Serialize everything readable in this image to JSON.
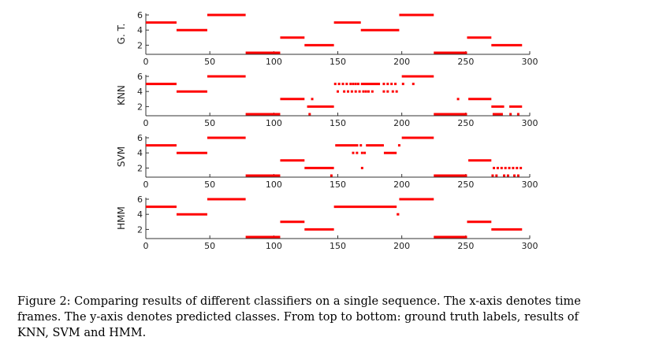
{
  "chart_data": [
    {
      "type": "scatter",
      "ylabel": "G. T.",
      "xlim": [
        0,
        300
      ],
      "ylim": [
        1,
        6
      ],
      "xticks": [
        0,
        50,
        100,
        150,
        200,
        250,
        300
      ],
      "yticks": [
        2,
        4,
        6
      ],
      "color": "#ff0000",
      "segments": [
        {
          "x0": 0,
          "x1": 24,
          "y": 5
        },
        {
          "x0": 24,
          "x1": 48,
          "y": 4
        },
        {
          "x0": 48,
          "x1": 78,
          "y": 6
        },
        {
          "x0": 78,
          "x1": 105,
          "y": 1
        },
        {
          "x0": 105,
          "x1": 124,
          "y": 3
        },
        {
          "x0": 124,
          "x1": 147,
          "y": 2
        },
        {
          "x0": 147,
          "x1": 168,
          "y": 5
        },
        {
          "x0": 168,
          "x1": 198,
          "y": 4
        },
        {
          "x0": 198,
          "x1": 225,
          "y": 6
        },
        {
          "x0": 225,
          "x1": 251,
          "y": 1
        },
        {
          "x0": 251,
          "x1": 270,
          "y": 3
        },
        {
          "x0": 270,
          "x1": 294,
          "y": 2
        }
      ],
      "points": []
    },
    {
      "type": "scatter",
      "ylabel": "KNN",
      "xlim": [
        0,
        300
      ],
      "ylim": [
        1,
        6
      ],
      "xticks": [
        0,
        50,
        100,
        150,
        200,
        250,
        300
      ],
      "yticks": [
        2,
        4,
        6
      ],
      "color": "#ff0000",
      "segments": [
        {
          "x0": 0,
          "x1": 24,
          "y": 5
        },
        {
          "x0": 24,
          "x1": 48,
          "y": 4
        },
        {
          "x0": 48,
          "x1": 78,
          "y": 6
        },
        {
          "x0": 78,
          "x1": 105,
          "y": 1
        },
        {
          "x0": 105,
          "x1": 124,
          "y": 3
        },
        {
          "x0": 126,
          "x1": 147,
          "y": 2
        },
        {
          "x0": 168,
          "x1": 183,
          "y": 5
        },
        {
          "x0": 200,
          "x1": 225,
          "y": 6
        },
        {
          "x0": 225,
          "x1": 251,
          "y": 1
        },
        {
          "x0": 252,
          "x1": 270,
          "y": 3
        },
        {
          "x0": 270,
          "x1": 280,
          "y": 2
        },
        {
          "x0": 284,
          "x1": 294,
          "y": 2
        },
        {
          "x0": 271,
          "x1": 279,
          "y": 1
        }
      ],
      "points": [
        {
          "x": 148,
          "y": 5
        },
        {
          "x": 151,
          "y": 5
        },
        {
          "x": 154,
          "y": 5
        },
        {
          "x": 157,
          "y": 5
        },
        {
          "x": 160,
          "y": 5
        },
        {
          "x": 162,
          "y": 5
        },
        {
          "x": 164,
          "y": 5
        },
        {
          "x": 166,
          "y": 5
        },
        {
          "x": 186,
          "y": 5
        },
        {
          "x": 189,
          "y": 5
        },
        {
          "x": 192,
          "y": 5
        },
        {
          "x": 195,
          "y": 5
        },
        {
          "x": 201,
          "y": 5
        },
        {
          "x": 209,
          "y": 5
        },
        {
          "x": 150,
          "y": 4
        },
        {
          "x": 155,
          "y": 4
        },
        {
          "x": 158,
          "y": 4
        },
        {
          "x": 161,
          "y": 4
        },
        {
          "x": 164,
          "y": 4
        },
        {
          "x": 167,
          "y": 4
        },
        {
          "x": 170,
          "y": 4
        },
        {
          "x": 172,
          "y": 4
        },
        {
          "x": 174,
          "y": 4
        },
        {
          "x": 177,
          "y": 4
        },
        {
          "x": 186,
          "y": 4
        },
        {
          "x": 189,
          "y": 4
        },
        {
          "x": 193,
          "y": 4
        },
        {
          "x": 196,
          "y": 4
        },
        {
          "x": 130,
          "y": 3
        },
        {
          "x": 128,
          "y": 1
        },
        {
          "x": 244,
          "y": 3
        },
        {
          "x": 285,
          "y": 1
        },
        {
          "x": 291,
          "y": 1
        }
      ]
    },
    {
      "type": "scatter",
      "ylabel": "SVM",
      "xlim": [
        0,
        300
      ],
      "ylim": [
        1,
        6
      ],
      "xticks": [
        0,
        50,
        100,
        150,
        200,
        250,
        300
      ],
      "yticks": [
        2,
        4,
        6
      ],
      "color": "#ff0000",
      "segments": [
        {
          "x0": 0,
          "x1": 24,
          "y": 5
        },
        {
          "x0": 24,
          "x1": 48,
          "y": 4
        },
        {
          "x0": 48,
          "x1": 78,
          "y": 6
        },
        {
          "x0": 78,
          "x1": 105,
          "y": 1
        },
        {
          "x0": 105,
          "x1": 124,
          "y": 3
        },
        {
          "x0": 124,
          "x1": 147,
          "y": 2
        },
        {
          "x0": 148,
          "x1": 166,
          "y": 5
        },
        {
          "x0": 172,
          "x1": 186,
          "y": 5
        },
        {
          "x0": 186,
          "x1": 196,
          "y": 4
        },
        {
          "x0": 200,
          "x1": 225,
          "y": 6
        },
        {
          "x0": 225,
          "x1": 251,
          "y": 1
        },
        {
          "x0": 252,
          "x1": 270,
          "y": 3
        }
      ],
      "points": [
        {
          "x": 168,
          "y": 5
        },
        {
          "x": 198,
          "y": 5
        },
        {
          "x": 162,
          "y": 4
        },
        {
          "x": 165,
          "y": 4
        },
        {
          "x": 169,
          "y": 4
        },
        {
          "x": 171,
          "y": 4
        },
        {
          "x": 169,
          "y": 2
        },
        {
          "x": 145,
          "y": 1
        },
        {
          "x": 272,
          "y": 2
        },
        {
          "x": 275,
          "y": 2
        },
        {
          "x": 278,
          "y": 2
        },
        {
          "x": 281,
          "y": 2
        },
        {
          "x": 284,
          "y": 2
        },
        {
          "x": 287,
          "y": 2
        },
        {
          "x": 290,
          "y": 2
        },
        {
          "x": 293,
          "y": 2
        },
        {
          "x": 271,
          "y": 1
        },
        {
          "x": 274,
          "y": 1
        },
        {
          "x": 280,
          "y": 1
        },
        {
          "x": 283,
          "y": 1
        },
        {
          "x": 288,
          "y": 1
        },
        {
          "x": 291,
          "y": 1
        }
      ]
    },
    {
      "type": "scatter",
      "ylabel": "HMM",
      "xlim": [
        0,
        300
      ],
      "ylim": [
        1,
        6
      ],
      "xticks": [
        0,
        50,
        100,
        150,
        200,
        250,
        300
      ],
      "yticks": [
        2,
        4,
        6
      ],
      "color": "#ff0000",
      "segments": [
        {
          "x0": 0,
          "x1": 24,
          "y": 5
        },
        {
          "x0": 24,
          "x1": 48,
          "y": 4
        },
        {
          "x0": 48,
          "x1": 78,
          "y": 6
        },
        {
          "x0": 78,
          "x1": 105,
          "y": 1
        },
        {
          "x0": 105,
          "x1": 124,
          "y": 3
        },
        {
          "x0": 124,
          "x1": 147,
          "y": 2
        },
        {
          "x0": 147,
          "x1": 196,
          "y": 5
        },
        {
          "x0": 196,
          "x1": 198,
          "y": 4
        },
        {
          "x0": 198,
          "x1": 225,
          "y": 6
        },
        {
          "x0": 225,
          "x1": 251,
          "y": 1
        },
        {
          "x0": 251,
          "x1": 270,
          "y": 3
        },
        {
          "x0": 270,
          "x1": 294,
          "y": 2
        }
      ],
      "points": []
    }
  ],
  "caption": {
    "line1": "Figure 2: Comparing results of different classifiers on a single sequence. The x-axis denotes time",
    "line2": "frames. The y-axis denotes predicted classes. From top to bottom: ground truth labels, results of",
    "line3": "KNN, SVM and HMM."
  }
}
